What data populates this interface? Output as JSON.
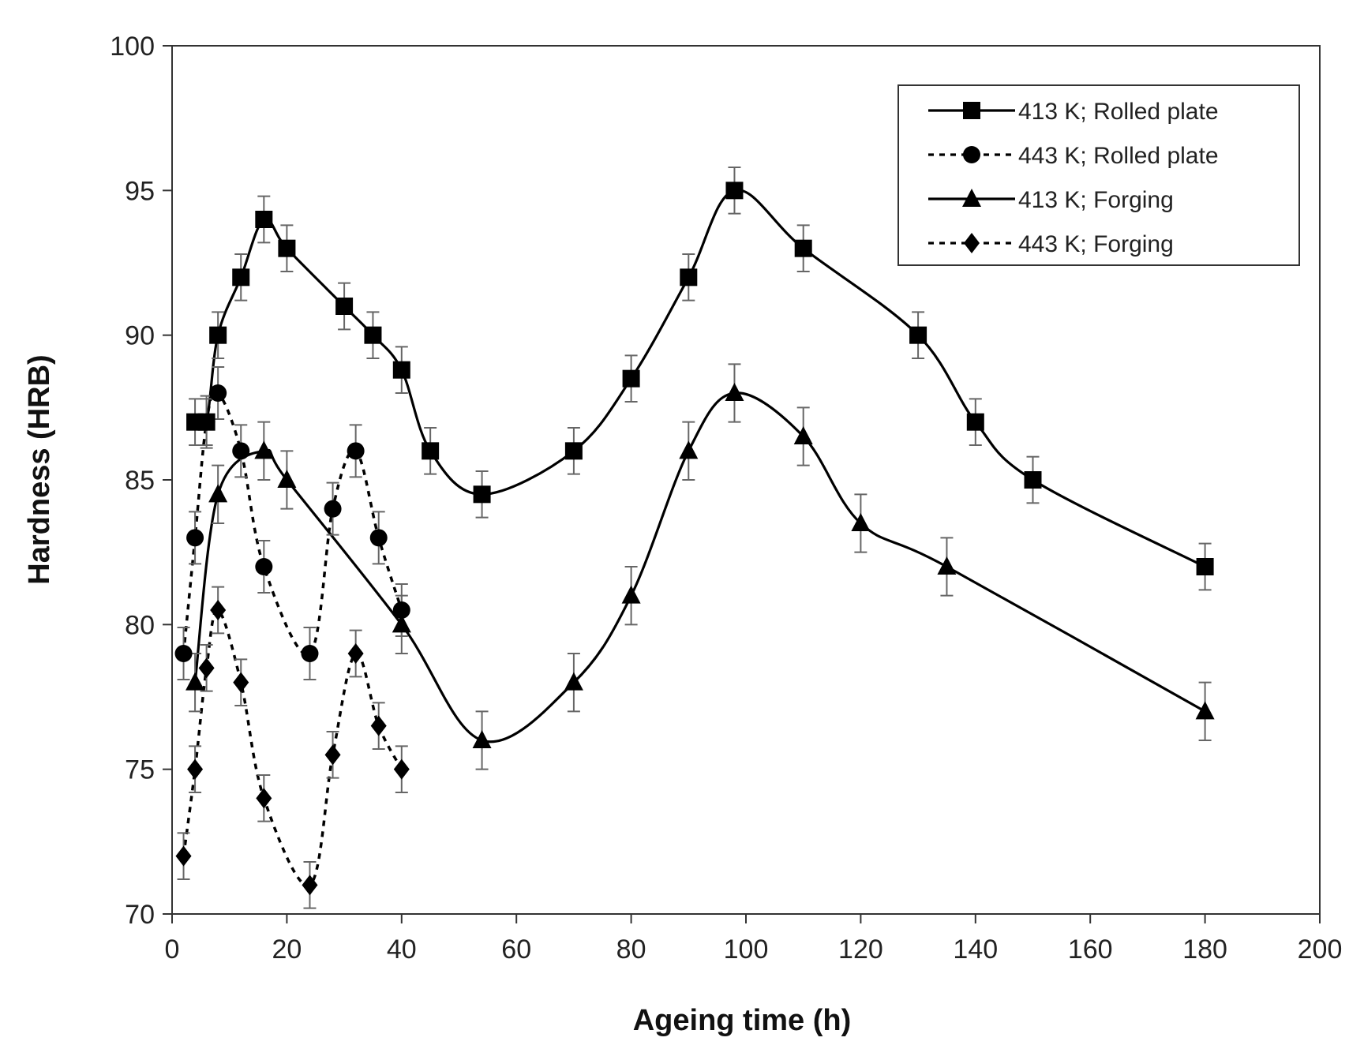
{
  "chart_data": {
    "type": "line",
    "title": "",
    "xlabel": "Ageing time (h)",
    "ylabel": "Hardness (HRB)",
    "xlim": [
      0,
      200
    ],
    "ylim": [
      70,
      100
    ],
    "x_ticks": [
      0,
      20,
      40,
      60,
      80,
      100,
      120,
      140,
      160,
      180,
      200
    ],
    "y_ticks": [
      70,
      75,
      80,
      85,
      90,
      95,
      100
    ],
    "grid": false,
    "legend_position": "top-right",
    "error_bars": true,
    "series": [
      {
        "name": "413 K; Rolled plate",
        "marker": "square",
        "line_style": "solid",
        "x": [
          4,
          6,
          8,
          12,
          16,
          20,
          30,
          35,
          40,
          45,
          54,
          70,
          80,
          90,
          98,
          110,
          130,
          140,
          150,
          180
        ],
        "y": [
          87,
          87,
          90,
          92,
          94,
          93,
          91,
          90,
          88.8,
          86,
          84.5,
          86,
          88.5,
          92,
          95,
          93,
          90,
          87,
          85,
          82
        ],
        "err": [
          0.8,
          0.8,
          0.8,
          0.8,
          0.8,
          0.8,
          0.8,
          0.8,
          0.8,
          0.8,
          0.8,
          0.8,
          0.8,
          0.8,
          0.8,
          0.8,
          0.8,
          0.8,
          0.8,
          0.8
        ]
      },
      {
        "name": "443 K; Rolled plate",
        "marker": "circle",
        "line_style": "dotted",
        "x": [
          2,
          4,
          6,
          8,
          12,
          16,
          24,
          28,
          32,
          36,
          40
        ],
        "y": [
          79,
          83,
          87,
          88,
          86,
          82,
          79,
          84,
          86,
          83,
          80.5
        ],
        "err": [
          0.9,
          0.9,
          0.9,
          0.9,
          0.9,
          0.9,
          0.9,
          0.9,
          0.9,
          0.9,
          0.9
        ]
      },
      {
        "name": "413 K; Forging",
        "marker": "triangle",
        "line_style": "solid",
        "x": [
          4,
          8,
          16,
          20,
          40,
          54,
          70,
          80,
          90,
          98,
          110,
          120,
          135,
          180
        ],
        "y": [
          78,
          84.5,
          86,
          85,
          80,
          76,
          78,
          81,
          86,
          88,
          86.5,
          83.5,
          82,
          77
        ],
        "err": [
          1.0,
          1.0,
          1.0,
          1.0,
          1.0,
          1.0,
          1.0,
          1.0,
          1.0,
          1.0,
          1.0,
          1.0,
          1.0,
          1.0
        ]
      },
      {
        "name": "443 K; Forging",
        "marker": "diamond",
        "line_style": "dotted",
        "x": [
          2,
          4,
          6,
          8,
          12,
          16,
          24,
          28,
          32,
          36,
          40
        ],
        "y": [
          72,
          75,
          78.5,
          80.5,
          78,
          74,
          71,
          75.5,
          79,
          76.5,
          75
        ],
        "err": [
          0.8,
          0.8,
          0.8,
          0.8,
          0.8,
          0.8,
          0.8,
          0.8,
          0.8,
          0.8,
          0.8
        ]
      }
    ]
  }
}
